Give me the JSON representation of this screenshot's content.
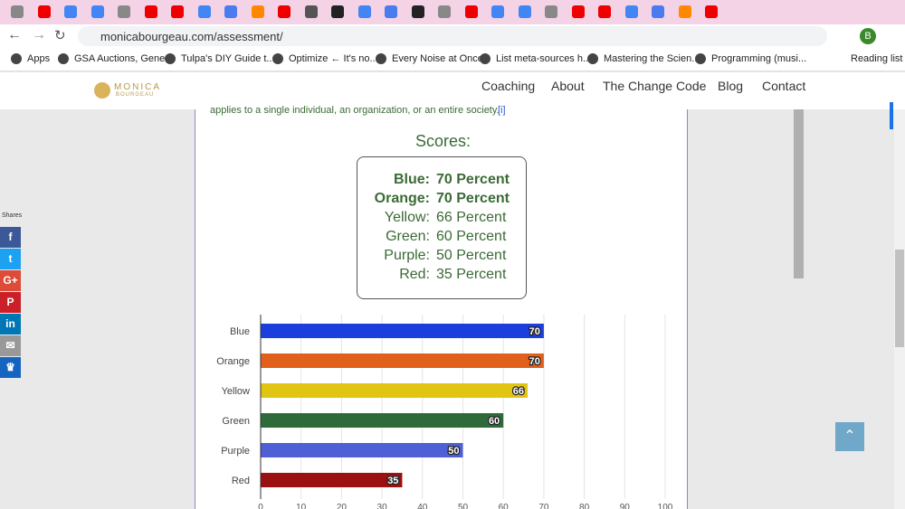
{
  "browser": {
    "url": "monicabourgeau.com/assessment/",
    "bookmarks": [
      "Apps",
      "GSA Auctions, Gene...",
      "Tulpa's DIY Guide t...",
      "Optimize ← It's no...",
      "Every Noise at Once",
      "List meta-sources h...",
      "Mastering the Scien...",
      "Programming (musi..."
    ],
    "reading_list": "Reading list",
    "profile": "B"
  },
  "header": {
    "logo_top": "MONICA",
    "logo_bottom": "BOURGEAU",
    "nav": [
      "Coaching",
      "About",
      "The Change Code",
      "Blog",
      "Contact"
    ]
  },
  "share": {
    "title": "Shares",
    "buttons": [
      "f",
      "t",
      "G+",
      "P",
      "in",
      "✉",
      "♛"
    ]
  },
  "content": {
    "intro": "applies to a single individual, an organization, or an entire society.",
    "footnote": "[i]",
    "scores_title": "Scores:",
    "scores": [
      {
        "label": "Blue:",
        "score": "70 Percent"
      },
      {
        "label": "Orange:",
        "score": "70 Percent"
      },
      {
        "label": "Yellow:",
        "score": "66 Percent"
      },
      {
        "label": "Green:",
        "score": "60 Percent"
      },
      {
        "label": "Purple:",
        "score": "50 Percent"
      },
      {
        "label": "Red:",
        "score": "35 Percent"
      }
    ]
  },
  "chart_data": {
    "type": "barh",
    "categories": [
      "Blue",
      "Orange",
      "Yellow",
      "Green",
      "Purple",
      "Red"
    ],
    "values": [
      70,
      70,
      66,
      60,
      50,
      35
    ],
    "colors": [
      "#1a3fdc",
      "#e0601c",
      "#e2c412",
      "#2f6a3a",
      "#4f5fd6",
      "#9b1111"
    ],
    "xlim": [
      0,
      100
    ],
    "xticks": [
      0,
      10,
      20,
      30,
      40,
      50,
      60,
      70,
      80,
      90,
      100
    ],
    "grid": true
  }
}
